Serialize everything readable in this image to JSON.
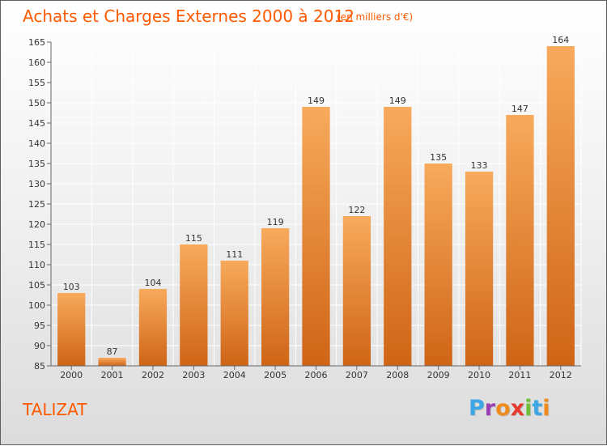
{
  "title": "Achats et Charges Externes 2000 à 2012",
  "subtitle": "(en milliers d'€)",
  "commune": "TALIZAT",
  "logo": {
    "letters": [
      "P",
      "r",
      "o",
      "x",
      "i",
      "t",
      "i"
    ],
    "colors": [
      "#3ba7e6",
      "#9a3fb3",
      "#f08a1c",
      "#e63a2e",
      "#6fbf3a",
      "#3ba7e6",
      "#f08a1c"
    ]
  },
  "colors": {
    "bar_top": "#f8aa5c",
    "bar_bottom": "#cf6416",
    "title": "#ff5a00",
    "axis": "#666666",
    "grid": "#ffffff"
  },
  "chart_data": {
    "type": "bar",
    "categories": [
      "2000",
      "2001",
      "2002",
      "2003",
      "2004",
      "2005",
      "2006",
      "2007",
      "2008",
      "2009",
      "2010",
      "2011",
      "2012"
    ],
    "values": [
      103,
      87,
      104,
      115,
      111,
      119,
      149,
      122,
      149,
      135,
      133,
      147,
      164
    ],
    "ylim": [
      85,
      165
    ],
    "yticks": [
      85,
      90,
      95,
      100,
      105,
      110,
      115,
      120,
      125,
      130,
      135,
      140,
      145,
      150,
      155,
      160,
      165
    ],
    "grid": true,
    "data_labels": true
  }
}
